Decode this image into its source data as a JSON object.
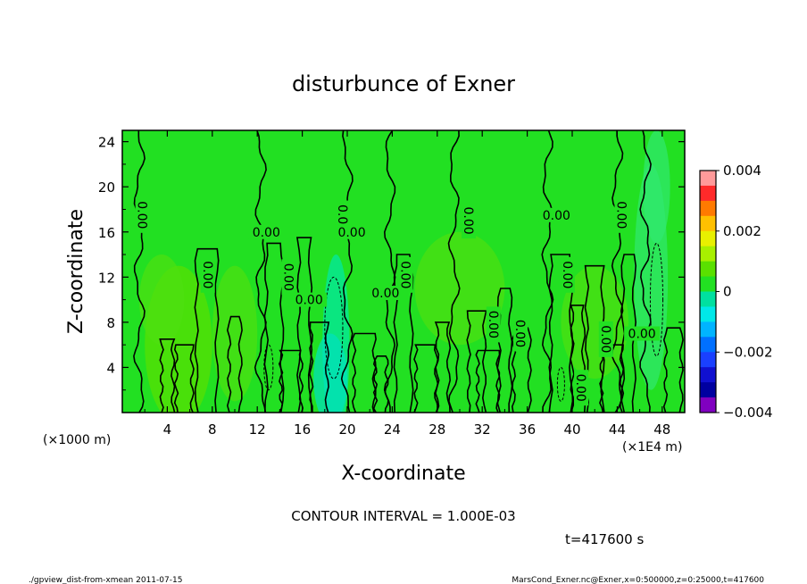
{
  "chart_data": {
    "type": "heatmap",
    "title": "disturbunce of Exner",
    "xlabel": "X-coordinate",
    "ylabel": "Z-coordinate",
    "x_unit_left": "(×1000 m)",
    "x_unit_right": "(×1E4 m)",
    "xlim": [
      0,
      50
    ],
    "ylim": [
      0,
      25
    ],
    "x_ticks": [
      4,
      8,
      12,
      16,
      20,
      24,
      28,
      32,
      36,
      40,
      44,
      48
    ],
    "y_ticks": [
      4,
      8,
      12,
      16,
      20,
      24
    ],
    "colorbar": {
      "min": -0.004,
      "max": 0.004,
      "tick_labels": [
        "0.004",
        "0.002",
        "0",
        "−0.002",
        "−0.004"
      ],
      "tick_values": [
        0.004,
        0.002,
        0,
        -0.002,
        -0.004
      ],
      "colors": [
        "#ff9a9a",
        "#ff2a2a",
        "#ff7a00",
        "#ffc000",
        "#e8f000",
        "#a8f000",
        "#5ae000",
        "#22e022",
        "#00e0a0",
        "#00e8e8",
        "#00b4ff",
        "#0070ff",
        "#1a40ff",
        "#1010d0",
        "#0000a0",
        "#8000c0"
      ]
    },
    "contour_interval_text": "CONTOUR INTERVAL = 1.000E-03",
    "contour_labels": [
      {
        "x": 1.8,
        "y": 17.5,
        "text": "0.00",
        "rot": -90
      },
      {
        "x": 7.6,
        "y": 12.2,
        "text": "0.00",
        "rot": -90
      },
      {
        "x": 12.8,
        "y": 16.0,
        "text": "0.00",
        "rot": 0
      },
      {
        "x": 14.8,
        "y": 12.0,
        "text": "0.00",
        "rot": -90
      },
      {
        "x": 16.6,
        "y": 10.0,
        "text": "0.00",
        "rot": 0
      },
      {
        "x": 19.6,
        "y": 17.2,
        "text": "0.00",
        "rot": -90
      },
      {
        "x": 20.4,
        "y": 16.0,
        "text": "0.00",
        "rot": 0
      },
      {
        "x": 23.4,
        "y": 10.6,
        "text": "0.00",
        "rot": 0
      },
      {
        "x": 25.2,
        "y": 12.2,
        "text": "0.00",
        "rot": -90
      },
      {
        "x": 30.8,
        "y": 17.0,
        "text": "0.00",
        "rot": -90
      },
      {
        "x": 33.0,
        "y": 7.8,
        "text": "0.00",
        "rot": -90
      },
      {
        "x": 35.4,
        "y": 7.0,
        "text": "0.00",
        "rot": -90
      },
      {
        "x": 38.6,
        "y": 17.5,
        "text": "0.00",
        "rot": 0
      },
      {
        "x": 39.6,
        "y": 12.2,
        "text": "0.00",
        "rot": -90
      },
      {
        "x": 40.8,
        "y": 2.2,
        "text": "0.00",
        "rot": -90
      },
      {
        "x": 43.0,
        "y": 6.5,
        "text": "0.00",
        "rot": -90
      },
      {
        "x": 44.4,
        "y": 17.5,
        "text": "0.00",
        "rot": -90
      },
      {
        "x": 46.2,
        "y": 7.0,
        "text": "0.00",
        "rot": 0
      }
    ]
  },
  "time_label": "t=417600 s",
  "footer": {
    "left": "./gpview_dist-from-xmean  2011-07-15",
    "right": "MarsCond_Exner.nc@Exner,x=0:500000,z=0:25000,t=417600"
  },
  "colors": {
    "background_field": "#22e022",
    "light_field": "#5ae000",
    "cyan_field": "#00e8a8"
  }
}
